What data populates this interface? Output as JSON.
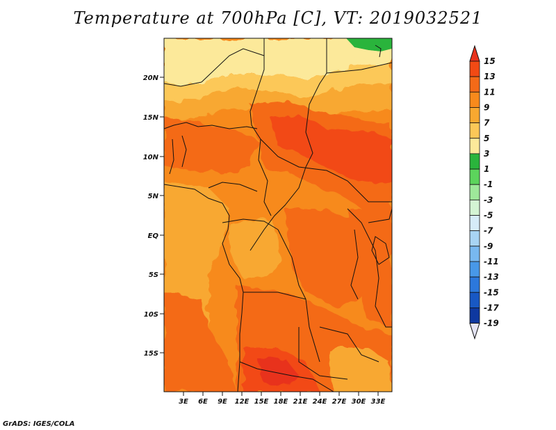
{
  "title": "Temperature at 700hPa [C], VT: 2019032521",
  "credit": "GrADS: IGES/COLA",
  "map": {
    "lat_labels": [
      "20N",
      "15N",
      "10N",
      "5N",
      "EQ",
      "5S",
      "10S",
      "15S"
    ],
    "lon_labels": [
      "3E",
      "6E",
      "9E",
      "12E",
      "15E",
      "18E",
      "21E",
      "24E",
      "27E",
      "30E",
      "33E"
    ]
  },
  "colorbar": {
    "levels": [
      "15",
      "13",
      "11",
      "9",
      "7",
      "5",
      "3",
      "1",
      "-1",
      "-3",
      "-5",
      "-7",
      "-9",
      "-11",
      "-13",
      "-15",
      "-17",
      "-19"
    ],
    "colors": [
      "#e8321c",
      "#f24a14",
      "#f46a18",
      "#f78a1c",
      "#f8a830",
      "#fcc858",
      "#fce99a",
      "#2ab43c",
      "#5cd45c",
      "#9ee89a",
      "#d4f4d4",
      "#d6ecf8",
      "#a8d4f4",
      "#78b8f0",
      "#4898e8",
      "#2c78dc",
      "#1858c4",
      "#0e38a0",
      "#0a1c70"
    ]
  }
}
